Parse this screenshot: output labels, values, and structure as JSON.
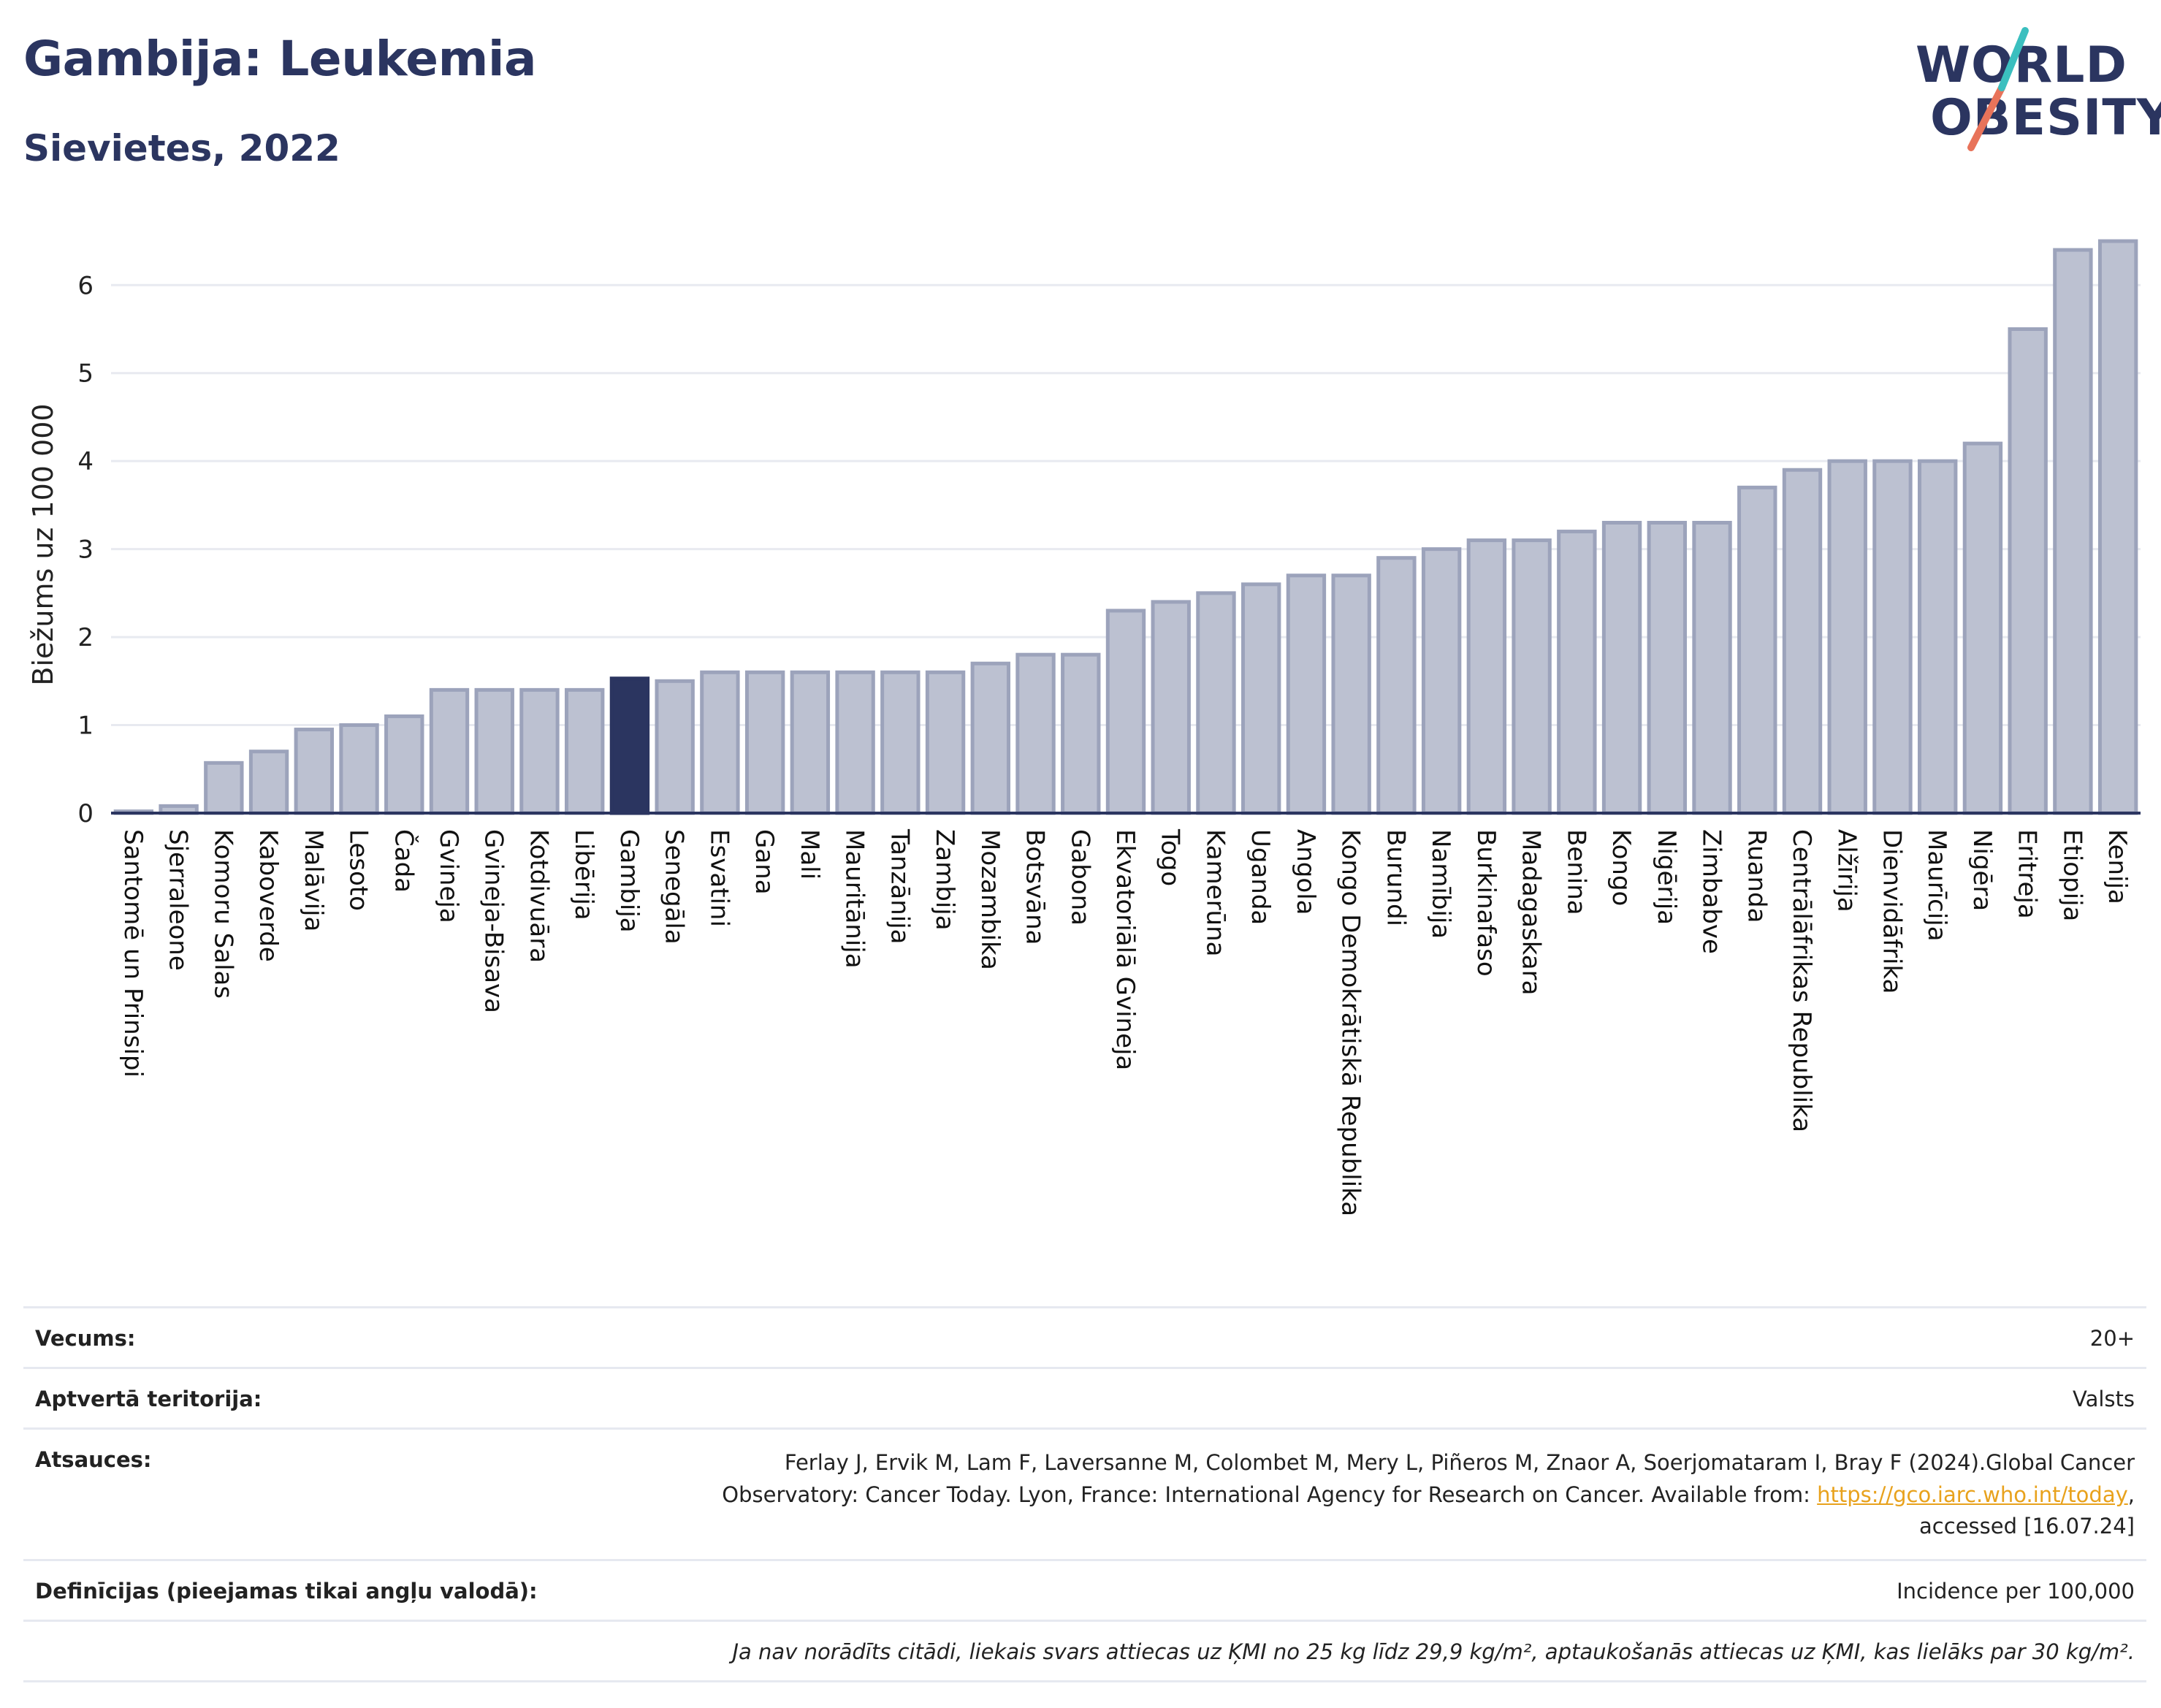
{
  "header": {
    "title": "Gambija: Leukemia",
    "subtitle": "Sievietes, 2022"
  },
  "logo": {
    "line1": "WORLD",
    "line2": "OBESITY"
  },
  "chart_data": {
    "type": "bar",
    "ylabel": "Biežums uz 100 000",
    "xlabel": "",
    "ylim": [
      0,
      6.6
    ],
    "yticks": [
      0,
      1,
      2,
      3,
      4,
      5,
      6
    ],
    "grid": true,
    "highlight": "Gambija",
    "colors": {
      "bar": "#bcc1d1",
      "bar_edge": "#9ca3bb",
      "highlight": "#2b3560",
      "grid": "#e8eaf0",
      "axis": "#2b3560"
    },
    "categories": [
      "Santomē un Prinsipi",
      "Sjerraleone",
      "Komoru Salas",
      "Kaboverde",
      "Malāvija",
      "Lesoto",
      "Čada",
      "Gvineja",
      "Gvineja-Bisava",
      "Kotdivuāra",
      "Libērija",
      "Gambija",
      "Senegāla",
      "Esvatini",
      "Gana",
      "Mali",
      "Mauritānija",
      "Tanzānija",
      "Zambija",
      "Mozambika",
      "Botsvāna",
      "Gabona",
      "Ekvatoriālā Gvineja",
      "Togo",
      "Kamerūna",
      "Uganda",
      "Angola",
      "Kongo Demokrātiskā Republika",
      "Burundi",
      "Namībija",
      "Burkinafaso",
      "Madagaskara",
      "Benina",
      "Kongo",
      "Nigērija",
      "Zimbabve",
      "Ruanda",
      "Centrālāfrikas Republika",
      "Alžīrija",
      "Dienvidāfrika",
      "Maurīcija",
      "Nigēra",
      "Eritreja",
      "Etiopija",
      "Kenija"
    ],
    "values": [
      0.02,
      0.08,
      0.57,
      0.7,
      0.95,
      1.0,
      1.1,
      1.4,
      1.4,
      1.4,
      1.4,
      1.53,
      1.5,
      1.6,
      1.6,
      1.6,
      1.6,
      1.6,
      1.6,
      1.7,
      1.8,
      1.8,
      2.3,
      2.4,
      2.5,
      2.6,
      2.7,
      2.7,
      2.9,
      3.0,
      3.1,
      3.1,
      3.2,
      3.3,
      3.3,
      3.3,
      3.7,
      3.9,
      4.0,
      4.0,
      4.0,
      4.2,
      5.5,
      6.4,
      6.5
    ]
  },
  "meta": {
    "rows": [
      {
        "label": "Vecums:",
        "value": "20+"
      },
      {
        "label": "Aptvertā teritorija:",
        "value": "Valsts"
      }
    ],
    "ref_label": "Atsauces:",
    "ref_text_1": "Ferlay J, Ervik M, Lam F, Laversanne M, Colombet M, Mery L, Piñeros M, Znaor A, Soerjomataram I, Bray F (2024).Global Cancer Observatory: Cancer Today. Lyon, France: International Agency for Research on Cancer. Available from: ",
    "ref_link": "https://gco.iarc.who.int/today",
    "ref_text_2": ", accessed [16.07.24]",
    "def_label": "Definīcijas (pieejamas tikai angļu valodā):",
    "def_value": "Incidence per 100,000",
    "note": "Ja nav norādīts citādi, liekais svars attiecas uz ĶMI no 25 kg līdz 29,9 kg/m², aptaukošanās attiecas uz ĶMI, kas lielāks par 30 kg/m²."
  }
}
